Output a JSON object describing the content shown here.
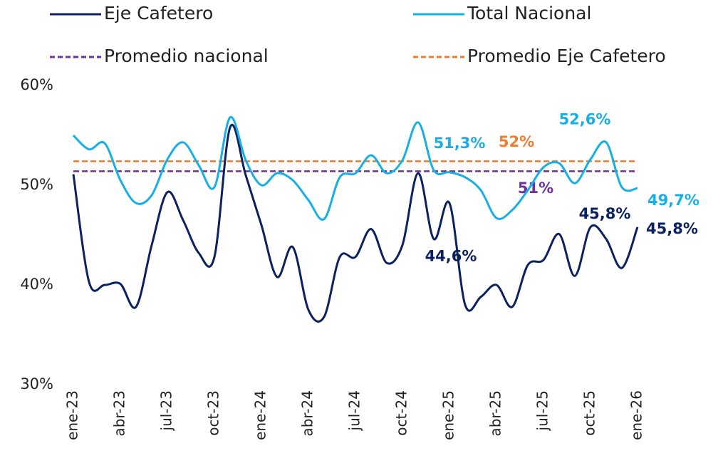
{
  "chart_data": {
    "type": "line",
    "categories": [
      "ene-23",
      null,
      null,
      "abr-23",
      null,
      null,
      "jul-23",
      null,
      null,
      "oct-23",
      null,
      null,
      "ene-24",
      null,
      null,
      "abr-24",
      null,
      null,
      "jul-24",
      null,
      null,
      "oct-24",
      null,
      null,
      "ene-25",
      null,
      null,
      "abr-25",
      null,
      null,
      "jul-25",
      null,
      null,
      "oct-25",
      null,
      null,
      "ene-26"
    ],
    "series": [
      {
        "name": "Eje Cafetero",
        "color": "#0b2160",
        "values": [
          51.1,
          40.3,
          40.0,
          40.1,
          37.8,
          44.0,
          49.3,
          46.5,
          43.2,
          42.8,
          55.8,
          51.0,
          46.0,
          40.8,
          43.8,
          37.5,
          36.8,
          42.8,
          42.8,
          45.6,
          42.2,
          44.0,
          51.2,
          44.6,
          48.2,
          38.0,
          38.8,
          40.0,
          37.8,
          42.0,
          42.5,
          45.1,
          40.9,
          45.8,
          44.6,
          41.7,
          45.8
        ],
        "value_labels": [
          null,
          null,
          null,
          null,
          null,
          null,
          null,
          null,
          null,
          null,
          null,
          null,
          null,
          null,
          null,
          null,
          null,
          null,
          null,
          null,
          null,
          null,
          null,
          "44,6%",
          null,
          null,
          null,
          null,
          null,
          null,
          null,
          null,
          null,
          "45,8%",
          null,
          null,
          "45,8%"
        ]
      },
      {
        "name": "Total Nacional",
        "color": "#18aee6",
        "values": [
          55.0,
          53.6,
          54.2,
          50.5,
          48.2,
          49.0,
          52.6,
          54.3,
          52.0,
          49.8,
          56.8,
          52.5,
          50.0,
          51.2,
          50.5,
          48.5,
          46.6,
          50.8,
          51.2,
          53.0,
          51.2,
          52.5,
          56.3,
          51.5,
          51.3,
          50.8,
          49.5,
          46.7,
          47.5,
          49.5,
          51.8,
          52.2,
          50.2,
          52.6,
          54.3,
          49.8,
          49.7
        ],
        "value_labels": [
          null,
          null,
          null,
          null,
          null,
          null,
          null,
          null,
          null,
          null,
          null,
          null,
          null,
          null,
          null,
          null,
          null,
          null,
          null,
          null,
          null,
          null,
          null,
          null,
          "51,3%",
          null,
          null,
          null,
          null,
          null,
          null,
          null,
          null,
          "52,6%",
          null,
          null,
          "49,7%"
        ]
      }
    ],
    "reference_lines": [
      {
        "name": "Promedio nacional",
        "value": 51.4,
        "value_label": "51%",
        "color": "#7030a0"
      },
      {
        "name": "Promedio Eje Cafetero",
        "value": 52.4,
        "value_label": "52%",
        "color": "#ed7d31"
      }
    ],
    "ylim": [
      30,
      60
    ],
    "yticks": [
      {
        "value": 30,
        "label": "30%"
      },
      {
        "value": 40,
        "label": "40%"
      },
      {
        "value": 50,
        "label": "50%"
      },
      {
        "value": 60,
        "label": "60%"
      }
    ],
    "grid": false
  }
}
